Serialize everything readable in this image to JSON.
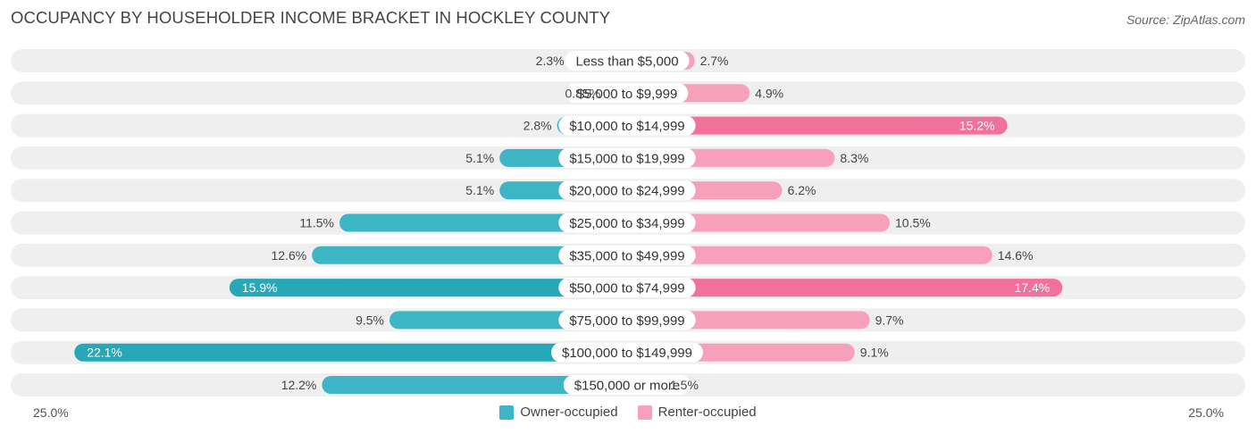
{
  "title": "OCCUPANCY BY HOUSEHOLDER INCOME BRACKET IN HOCKLEY COUNTY",
  "source": "Source: ZipAtlas.com",
  "colors": {
    "owner": "#3db5c4",
    "owner_strong": "#27a8b8",
    "renter": "#f7a0bc",
    "renter_strong": "#f2709a",
    "row_bg": "#efefef"
  },
  "chart_data": {
    "type": "bar",
    "orientation": "horizontal-diverging",
    "categories": [
      "Less than $5,000",
      "$5,000 to $9,999",
      "$10,000 to $14,999",
      "$15,000 to $19,999",
      "$20,000 to $24,999",
      "$25,000 to $34,999",
      "$35,000 to $49,999",
      "$50,000 to $74,999",
      "$75,000 to $99,999",
      "$100,000 to $149,999",
      "$150,000 or more"
    ],
    "series": [
      {
        "name": "Owner-occupied",
        "values": [
          2.3,
          0.85,
          2.8,
          5.1,
          5.1,
          11.5,
          12.6,
          15.9,
          9.5,
          22.1,
          12.2
        ],
        "labels": [
          "2.3%",
          "0.85%",
          "2.8%",
          "5.1%",
          "5.1%",
          "11.5%",
          "12.6%",
          "15.9%",
          "9.5%",
          "22.1%",
          "12.2%"
        ]
      },
      {
        "name": "Renter-occupied",
        "values": [
          2.7,
          4.9,
          15.2,
          8.3,
          6.2,
          10.5,
          14.6,
          17.4,
          9.7,
          9.1,
          1.5
        ],
        "labels": [
          "2.7%",
          "4.9%",
          "15.2%",
          "8.3%",
          "6.2%",
          "10.5%",
          "14.6%",
          "17.4%",
          "9.7%",
          "9.1%",
          "1.5%"
        ]
      }
    ],
    "xlim": [
      -25,
      25
    ],
    "axis_min_label": "25.0%",
    "axis_max_label": "25.0%",
    "legend_position": "bottom-center"
  }
}
